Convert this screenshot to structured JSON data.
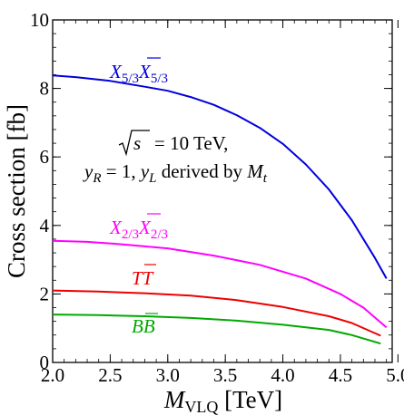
{
  "chart_data": {
    "type": "line",
    "xlabel": "M_VLQ [TeV]",
    "ylabel": "Cross section [fb]",
    "xlim": [
      2.0,
      4.95
    ],
    "ylim": [
      0,
      10
    ],
    "xticks": [
      "2.0",
      "2.5",
      "3.0",
      "3.5",
      "4.0",
      "4.5",
      "5.0"
    ],
    "yticks": [
      "0",
      "2",
      "4",
      "6",
      "8",
      "10"
    ],
    "grid": false,
    "annotation": [
      "√s = 10 TeV,",
      "y_R = 1, y_L derived by M_t"
    ],
    "series": [
      {
        "name": "X5/3 X̄5/3",
        "color": "#0000dd",
        "x": [
          2.0,
          2.2,
          2.5,
          2.8,
          3.0,
          3.2,
          3.4,
          3.6,
          3.8,
          4.0,
          4.2,
          4.4,
          4.6,
          4.8,
          4.9
        ],
        "y": [
          8.38,
          8.33,
          8.22,
          8.05,
          7.93,
          7.75,
          7.52,
          7.22,
          6.85,
          6.38,
          5.78,
          5.05,
          4.15,
          3.05,
          2.45
        ]
      },
      {
        "name": "X2/3 X̄2/3",
        "color": "#ff00ff",
        "x": [
          2.0,
          2.3,
          2.6,
          3.0,
          3.4,
          3.8,
          4.2,
          4.5,
          4.7,
          4.9
        ],
        "y": [
          3.55,
          3.52,
          3.45,
          3.33,
          3.12,
          2.85,
          2.45,
          2.0,
          1.6,
          1.02
        ]
      },
      {
        "name": "T T̄",
        "color": "#ee0000",
        "x": [
          2.0,
          2.4,
          2.8,
          3.2,
          3.6,
          4.0,
          4.4,
          4.6,
          4.85
        ],
        "y": [
          2.1,
          2.07,
          2.02,
          1.95,
          1.82,
          1.62,
          1.35,
          1.15,
          0.78
        ]
      },
      {
        "name": "B B̄",
        "color": "#00aa00",
        "x": [
          2.0,
          2.4,
          2.8,
          3.2,
          3.6,
          4.0,
          4.4,
          4.6,
          4.85
        ],
        "y": [
          1.4,
          1.38,
          1.35,
          1.3,
          1.22,
          1.1,
          0.95,
          0.8,
          0.55
        ]
      }
    ]
  }
}
